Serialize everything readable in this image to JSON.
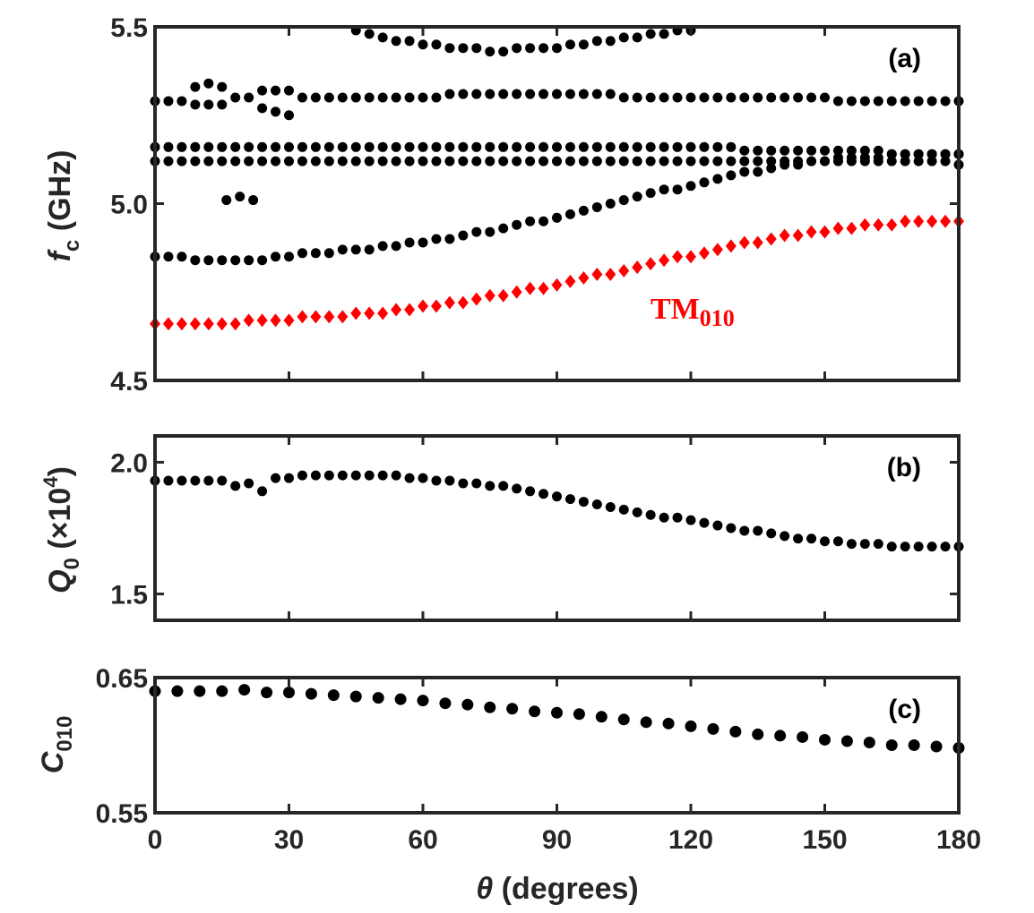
{
  "colors": {
    "axis": "#262626",
    "black": "#000000",
    "red": "#ff0000",
    "background": "#ffffff"
  },
  "x_axis": {
    "label_symbol": "θ",
    "label_text": " (degrees)",
    "tick_labels": [
      "0",
      "30",
      "60",
      "90",
      "120",
      "150",
      "180"
    ],
    "ticks": [
      0,
      30,
      60,
      90,
      120,
      150,
      180
    ],
    "xlim": [
      0,
      180
    ]
  },
  "chart_data": [
    {
      "panel": "a",
      "type": "scatter",
      "panel_label": "(a)",
      "ylabel_symbol": "f",
      "ylabel_sub": "c",
      "ylabel_unit": " (GHz)",
      "ylim": [
        4.5,
        5.5
      ],
      "yticks": [
        4.5,
        5.0,
        5.5
      ],
      "ytick_labels": [
        "4.5",
        "5.0",
        "5.5"
      ],
      "annotation": {
        "text": "TM",
        "sub": "010",
        "color": "#ff0000"
      },
      "series": [
        {
          "name": "mode-band-top",
          "marker": "circle",
          "color": "#000000",
          "x": [
            45,
            48,
            51,
            54,
            57,
            60,
            63,
            66,
            69,
            72,
            75,
            78,
            81,
            84,
            87,
            90,
            93,
            96,
            99,
            102,
            105,
            108,
            111,
            114,
            117,
            120
          ],
          "y": [
            5.49,
            5.48,
            5.47,
            5.46,
            5.46,
            5.45,
            5.45,
            5.44,
            5.44,
            5.44,
            5.43,
            5.43,
            5.44,
            5.44,
            5.44,
            5.44,
            5.45,
            5.45,
            5.46,
            5.46,
            5.47,
            5.47,
            5.48,
            5.48,
            5.49,
            5.49
          ]
        },
        {
          "name": "mode-band-5.29",
          "marker": "circle",
          "color": "#000000",
          "x": [
            0,
            3,
            6,
            9,
            12,
            15,
            18,
            21,
            24,
            27,
            30,
            33,
            36,
            39,
            42,
            45,
            48,
            51,
            54,
            57,
            60,
            63,
            66,
            69,
            72,
            75,
            78,
            81,
            84,
            87,
            90,
            93,
            96,
            99,
            102,
            105,
            108,
            111,
            114,
            117,
            120,
            123,
            126,
            129,
            132,
            135,
            138,
            141,
            144,
            147,
            150,
            153,
            156,
            159,
            162,
            165,
            168,
            171,
            174,
            177,
            180
          ],
          "y": [
            5.29,
            5.29,
            5.29,
            5.28,
            5.28,
            5.28,
            5.3,
            5.3,
            5.27,
            5.26,
            5.25,
            5.3,
            5.3,
            5.3,
            5.3,
            5.3,
            5.3,
            5.3,
            5.3,
            5.3,
            5.3,
            5.3,
            5.31,
            5.31,
            5.31,
            5.31,
            5.31,
            5.31,
            5.31,
            5.31,
            5.31,
            5.31,
            5.31,
            5.31,
            5.31,
            5.3,
            5.3,
            5.3,
            5.3,
            5.3,
            5.3,
            5.3,
            5.3,
            5.3,
            5.3,
            5.3,
            5.3,
            5.3,
            5.3,
            5.3,
            5.3,
            5.29,
            5.29,
            5.29,
            5.29,
            5.29,
            5.29,
            5.29,
            5.29,
            5.29,
            5.29
          ]
        },
        {
          "name": "mode-band-5.33-cluster",
          "marker": "circle",
          "color": "#000000",
          "x": [
            9,
            12,
            15,
            24,
            27,
            30
          ],
          "y": [
            5.33,
            5.34,
            5.33,
            5.32,
            5.32,
            5.32
          ]
        },
        {
          "name": "mode-band-5.16",
          "marker": "circle",
          "color": "#000000",
          "x": [
            0,
            3,
            6,
            9,
            12,
            15,
            18,
            21,
            24,
            27,
            30,
            33,
            36,
            39,
            42,
            45,
            48,
            51,
            54,
            57,
            60,
            63,
            66,
            69,
            72,
            75,
            78,
            81,
            84,
            87,
            90,
            93,
            96,
            99,
            102,
            105,
            108,
            111,
            114,
            117,
            120,
            123,
            126,
            129,
            132,
            135,
            138,
            141,
            144,
            147,
            150,
            153,
            156,
            159,
            162,
            165,
            168,
            171,
            174,
            177,
            180
          ],
          "y": [
            5.16,
            5.16,
            5.16,
            5.16,
            5.16,
            5.16,
            5.16,
            5.16,
            5.16,
            5.16,
            5.16,
            5.16,
            5.16,
            5.16,
            5.16,
            5.16,
            5.16,
            5.16,
            5.16,
            5.16,
            5.16,
            5.16,
            5.16,
            5.16,
            5.16,
            5.16,
            5.16,
            5.16,
            5.16,
            5.16,
            5.16,
            5.16,
            5.16,
            5.16,
            5.16,
            5.16,
            5.16,
            5.16,
            5.16,
            5.16,
            5.16,
            5.16,
            5.16,
            5.16,
            5.15,
            5.15,
            5.15,
            5.15,
            5.15,
            5.15,
            5.15,
            5.15,
            5.15,
            5.15,
            5.15,
            5.14,
            5.14,
            5.14,
            5.14,
            5.14,
            5.14
          ]
        },
        {
          "name": "mode-band-5.12",
          "marker": "circle",
          "color": "#000000",
          "x": [
            0,
            3,
            6,
            9,
            12,
            15,
            18,
            21,
            24,
            27,
            30,
            33,
            36,
            39,
            42,
            45,
            48,
            51,
            54,
            57,
            60,
            63,
            66,
            69,
            72,
            75,
            78,
            81,
            84,
            87,
            90,
            93,
            96,
            99,
            102,
            105,
            108,
            111,
            114,
            117,
            120,
            123,
            126,
            129,
            132,
            135,
            138,
            141,
            144,
            147,
            150,
            153,
            156,
            159,
            162,
            165,
            168,
            171,
            174,
            177,
            180
          ],
          "y": [
            5.12,
            5.12,
            5.12,
            5.12,
            5.12,
            5.12,
            5.12,
            5.12,
            5.12,
            5.12,
            5.12,
            5.12,
            5.12,
            5.12,
            5.12,
            5.12,
            5.12,
            5.12,
            5.12,
            5.12,
            5.12,
            5.12,
            5.12,
            5.12,
            5.12,
            5.12,
            5.12,
            5.12,
            5.12,
            5.12,
            5.12,
            5.12,
            5.12,
            5.12,
            5.12,
            5.12,
            5.12,
            5.12,
            5.12,
            5.12,
            5.12,
            5.12,
            5.12,
            5.12,
            5.12,
            5.12,
            5.12,
            5.12,
            5.12,
            5.12,
            5.12,
            5.12,
            5.12,
            5.12,
            5.12,
            5.12,
            5.12,
            5.12,
            5.12,
            5.12,
            5.11
          ]
        },
        {
          "name": "mode-band-5.01-isolated",
          "marker": "circle",
          "color": "#000000",
          "x": [
            16,
            19,
            22
          ],
          "y": [
            5.01,
            5.02,
            5.01
          ]
        },
        {
          "name": "mode-band-rising",
          "marker": "circle",
          "color": "#000000",
          "x": [
            0,
            3,
            6,
            9,
            12,
            15,
            18,
            21,
            24,
            27,
            30,
            33,
            36,
            39,
            42,
            45,
            48,
            51,
            54,
            57,
            60,
            63,
            66,
            69,
            72,
            75,
            78,
            81,
            84,
            87,
            90,
            93,
            96,
            99,
            102,
            105,
            108,
            111,
            114,
            117,
            120,
            123,
            126,
            129,
            132,
            135,
            138,
            141,
            144,
            147,
            150,
            153,
            156,
            159,
            162,
            165,
            168,
            171,
            174,
            177,
            180
          ],
          "y": [
            4.85,
            4.85,
            4.85,
            4.84,
            4.84,
            4.84,
            4.84,
            4.84,
            4.84,
            4.85,
            4.85,
            4.86,
            4.86,
            4.86,
            4.87,
            4.87,
            4.87,
            4.88,
            4.88,
            4.89,
            4.89,
            4.9,
            4.9,
            4.91,
            4.92,
            4.92,
            4.93,
            4.94,
            4.95,
            4.95,
            4.96,
            4.97,
            4.98,
            4.99,
            5.0,
            5.01,
            5.02,
            5.03,
            5.04,
            5.04,
            5.05,
            5.06,
            5.07,
            5.08,
            5.09,
            5.09,
            5.1,
            5.11,
            5.11,
            5.12,
            5.12,
            5.13,
            5.13,
            5.13,
            5.13,
            5.14,
            5.14,
            5.14,
            5.14,
            5.14,
            5.14
          ]
        },
        {
          "name": "TM010",
          "marker": "diamond",
          "color": "#ff0000",
          "x": [
            0,
            3,
            6,
            9,
            12,
            15,
            18,
            21,
            24,
            27,
            30,
            33,
            36,
            39,
            42,
            45,
            48,
            51,
            54,
            57,
            60,
            63,
            66,
            69,
            72,
            75,
            78,
            81,
            84,
            87,
            90,
            93,
            96,
            99,
            102,
            105,
            108,
            111,
            114,
            117,
            120,
            123,
            126,
            129,
            132,
            135,
            138,
            141,
            144,
            147,
            150,
            153,
            156,
            159,
            162,
            165,
            168,
            171,
            174,
            177,
            180
          ],
          "y": [
            4.66,
            4.66,
            4.66,
            4.66,
            4.66,
            4.66,
            4.66,
            4.67,
            4.67,
            4.67,
            4.67,
            4.68,
            4.68,
            4.68,
            4.68,
            4.69,
            4.69,
            4.69,
            4.7,
            4.7,
            4.71,
            4.71,
            4.72,
            4.72,
            4.73,
            4.74,
            4.74,
            4.75,
            4.76,
            4.76,
            4.77,
            4.78,
            4.79,
            4.8,
            4.8,
            4.81,
            4.82,
            4.83,
            4.84,
            4.85,
            4.85,
            4.86,
            4.87,
            4.88,
            4.89,
            4.89,
            4.9,
            4.91,
            4.91,
            4.92,
            4.92,
            4.93,
            4.93,
            4.94,
            4.94,
            4.94,
            4.95,
            4.95,
            4.95,
            4.95,
            4.95
          ]
        }
      ]
    },
    {
      "panel": "b",
      "type": "scatter",
      "panel_label": "(b)",
      "ylabel_symbol": "Q",
      "ylabel_sub": "0",
      "ylabel_unit": " (×10",
      "ylabel_exp": "4",
      "ylabel_close": ")",
      "ylim": [
        1.4,
        2.1
      ],
      "yticks": [
        1.5,
        2.0
      ],
      "ytick_labels": [
        "1.5",
        "2.0"
      ],
      "series": [
        {
          "name": "Q0",
          "marker": "circle",
          "color": "#000000",
          "x": [
            0,
            3,
            6,
            9,
            12,
            15,
            18,
            21,
            24,
            27,
            30,
            33,
            36,
            39,
            42,
            45,
            48,
            51,
            54,
            57,
            60,
            63,
            66,
            69,
            72,
            75,
            78,
            81,
            84,
            87,
            90,
            93,
            96,
            99,
            102,
            105,
            108,
            111,
            114,
            117,
            120,
            123,
            126,
            129,
            132,
            135,
            138,
            141,
            144,
            147,
            150,
            153,
            156,
            159,
            162,
            165,
            168,
            171,
            174,
            177,
            180
          ],
          "y": [
            1.93,
            1.93,
            1.93,
            1.93,
            1.93,
            1.93,
            1.91,
            1.92,
            1.89,
            1.94,
            1.94,
            1.95,
            1.95,
            1.95,
            1.95,
            1.95,
            1.95,
            1.95,
            1.95,
            1.94,
            1.94,
            1.93,
            1.93,
            1.92,
            1.92,
            1.91,
            1.91,
            1.9,
            1.89,
            1.88,
            1.87,
            1.86,
            1.85,
            1.84,
            1.83,
            1.82,
            1.81,
            1.8,
            1.79,
            1.79,
            1.78,
            1.77,
            1.76,
            1.75,
            1.74,
            1.74,
            1.73,
            1.72,
            1.71,
            1.71,
            1.7,
            1.7,
            1.69,
            1.69,
            1.69,
            1.68,
            1.68,
            1.68,
            1.68,
            1.68,
            1.68
          ]
        }
      ]
    },
    {
      "panel": "c",
      "type": "scatter",
      "panel_label": "(c)",
      "ylabel_symbol": "C",
      "ylabel_sub": "010",
      "ylim": [
        0.55,
        0.65
      ],
      "yticks": [
        0.55,
        0.65
      ],
      "ytick_labels": [
        "0.55",
        "0.65"
      ],
      "series": [
        {
          "name": "C010",
          "marker": "circle",
          "color": "#000000",
          "x": [
            0,
            5,
            10,
            15,
            20,
            25,
            30,
            35,
            40,
            45,
            50,
            55,
            60,
            65,
            70,
            75,
            80,
            85,
            90,
            95,
            100,
            105,
            110,
            115,
            120,
            125,
            130,
            135,
            140,
            145,
            150,
            155,
            160,
            165,
            170,
            175,
            180
          ],
          "y": [
            0.64,
            0.64,
            0.64,
            0.64,
            0.641,
            0.639,
            0.639,
            0.638,
            0.637,
            0.636,
            0.635,
            0.634,
            0.633,
            0.631,
            0.63,
            0.628,
            0.627,
            0.625,
            0.624,
            0.623,
            0.621,
            0.619,
            0.617,
            0.616,
            0.614,
            0.612,
            0.61,
            0.608,
            0.607,
            0.606,
            0.604,
            0.603,
            0.602,
            0.6,
            0.6,
            0.599,
            0.598
          ]
        }
      ]
    }
  ]
}
